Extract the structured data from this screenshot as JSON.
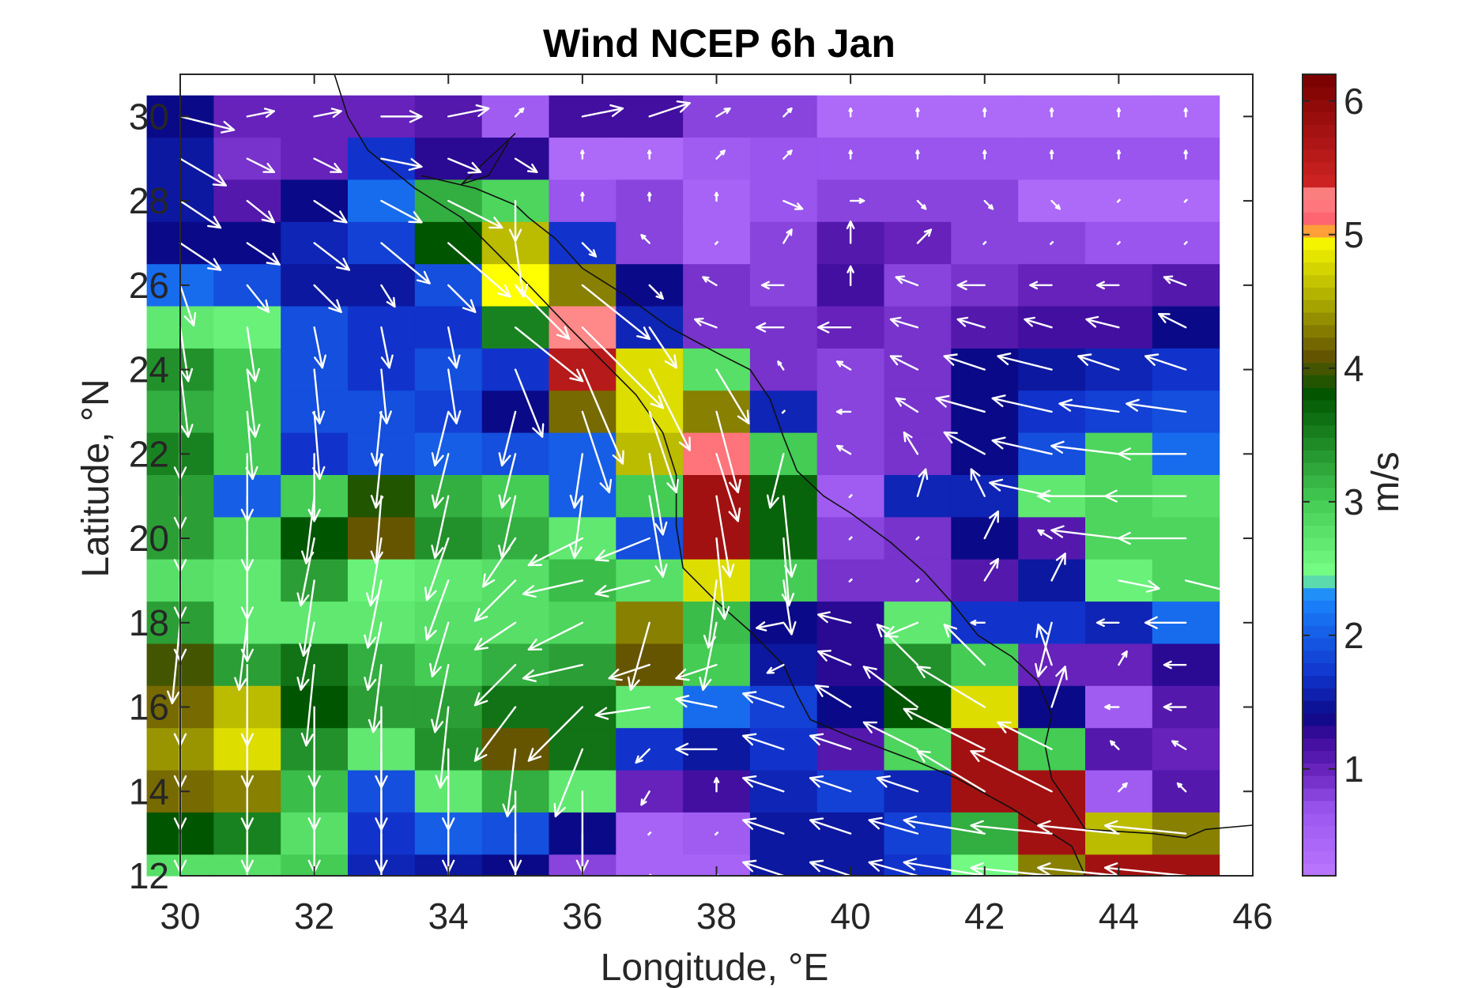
{
  "chart_data": {
    "type": "heatmap",
    "subtype": "wind speed grid with wind vectors",
    "title": "Wind NCEP 6h Jan",
    "xlabel": "Longitude, °E",
    "ylabel": "Latitude, °N",
    "colorbar_label": "m/s",
    "xlim": [
      30,
      46
    ],
    "ylim": [
      12,
      31
    ],
    "x_ticks": [
      "30",
      "32",
      "34",
      "36",
      "38",
      "40",
      "42",
      "44",
      "46"
    ],
    "y_ticks": [
      "12",
      "14",
      "16",
      "18",
      "20",
      "22",
      "24",
      "26",
      "28",
      "30"
    ],
    "colorbar_ticks": [
      "1",
      "2",
      "3",
      "4",
      "5",
      "6"
    ],
    "colorbar_range": [
      0.2,
      6.2
    ],
    "colormap": [
      [
        0.2,
        "#bb77ff"
      ],
      [
        0.7,
        "#9955ee"
      ],
      [
        1.0,
        "#6622bb"
      ],
      [
        1.25,
        "#3a0a99"
      ],
      [
        1.4,
        "#0a0a88"
      ],
      [
        1.7,
        "#1133cc"
      ],
      [
        2.3,
        "#1a88ff"
      ],
      [
        2.45,
        "#77ff88"
      ],
      [
        3.0,
        "#44cc55"
      ],
      [
        3.8,
        "#005500"
      ],
      [
        4.1,
        "#665500"
      ],
      [
        4.5,
        "#aaaa00"
      ],
      [
        5.0,
        "#ffff00"
      ],
      [
        5.05,
        "#ff5566"
      ],
      [
        5.3,
        "#ff8888"
      ],
      [
        5.4,
        "#cc2222"
      ],
      [
        6.2,
        "#770000"
      ]
    ],
    "x_centers": [
      30,
      31,
      32,
      33,
      34,
      35,
      36,
      37,
      38,
      39,
      40,
      41,
      42,
      43,
      44,
      45
    ],
    "y_centers": [
      30,
      29,
      28,
      27,
      26,
      25,
      24,
      23,
      22,
      21,
      20,
      19,
      18,
      17,
      16,
      15,
      14,
      13,
      12
    ],
    "speed": [
      [
        1.4,
        1.0,
        1.0,
        1.0,
        1.1,
        0.6,
        1.2,
        1.2,
        0.8,
        0.8,
        0.4,
        0.4,
        0.4,
        0.4,
        0.4,
        0.4
      ],
      [
        1.5,
        0.9,
        1.0,
        1.7,
        1.3,
        1.3,
        0.4,
        0.4,
        0.6,
        0.7,
        0.7,
        0.7,
        0.7,
        0.7,
        0.7,
        0.7
      ],
      [
        1.5,
        1.1,
        1.4,
        2.1,
        3.2,
        2.9,
        0.7,
        0.8,
        0.5,
        0.7,
        0.8,
        0.8,
        0.8,
        0.4,
        0.4,
        0.4
      ],
      [
        1.4,
        1.4,
        1.6,
        1.8,
        3.8,
        4.6,
        1.7,
        0.8,
        0.5,
        0.8,
        1.1,
        1.0,
        0.8,
        0.8,
        0.7,
        0.7
      ],
      [
        2.1,
        1.9,
        1.5,
        1.5,
        1.9,
        5.0,
        4.3,
        1.4,
        0.9,
        0.8,
        1.2,
        0.8,
        0.9,
        1.0,
        1.0,
        1.1
      ],
      [
        2.7,
        2.6,
        1.9,
        1.7,
        1.7,
        3.5,
        5.3,
        1.6,
        0.9,
        0.9,
        1.0,
        0.9,
        1.1,
        1.2,
        1.2,
        1.4
      ],
      [
        3.4,
        3.0,
        1.9,
        1.7,
        1.9,
        1.7,
        5.6,
        4.8,
        2.8,
        0.9,
        0.8,
        0.9,
        1.4,
        1.5,
        1.6,
        1.7
      ],
      [
        3.2,
        3.0,
        1.9,
        1.9,
        1.8,
        1.4,
        4.2,
        4.8,
        4.3,
        1.6,
        0.8,
        0.9,
        1.4,
        1.7,
        1.8,
        1.9
      ],
      [
        3.5,
        3.0,
        1.7,
        1.9,
        2.0,
        1.9,
        2.0,
        4.6,
        5.2,
        3.0,
        0.8,
        0.9,
        1.4,
        1.9,
        2.9,
        2.1
      ],
      [
        3.3,
        2.0,
        3.0,
        3.9,
        3.2,
        3.0,
        2.0,
        3.0,
        5.8,
        3.7,
        0.6,
        1.6,
        1.6,
        2.7,
        2.9,
        2.8
      ],
      [
        3.3,
        2.9,
        3.8,
        4.1,
        3.4,
        3.2,
        2.7,
        1.9,
        5.8,
        3.7,
        0.8,
        0.9,
        1.4,
        1.1,
        2.9,
        2.9
      ],
      [
        2.8,
        2.7,
        3.3,
        2.6,
        2.7,
        2.8,
        3.1,
        2.8,
        4.8,
        3.0,
        0.9,
        0.9,
        1.1,
        1.5,
        2.6,
        2.9
      ],
      [
        3.3,
        2.7,
        2.7,
        2.7,
        2.8,
        2.8,
        2.9,
        4.3,
        3.1,
        1.4,
        1.3,
        2.7,
        1.7,
        1.7,
        1.6,
        2.1
      ],
      [
        4.0,
        3.3,
        3.6,
        3.2,
        3.0,
        3.2,
        3.3,
        4.1,
        3.0,
        1.5,
        1.3,
        3.4,
        3.0,
        1.0,
        1.0,
        1.3
      ],
      [
        4.2,
        4.6,
        3.8,
        3.3,
        3.3,
        3.6,
        3.6,
        2.7,
        2.1,
        1.8,
        1.4,
        3.8,
        4.8,
        1.4,
        0.6,
        1.1
      ],
      [
        4.4,
        4.8,
        3.4,
        2.7,
        3.4,
        4.1,
        3.6,
        1.7,
        1.5,
        1.7,
        1.1,
        2.9,
        5.8,
        3.0,
        1.1,
        1.0
      ],
      [
        4.2,
        4.3,
        3.1,
        1.9,
        2.7,
        3.2,
        2.7,
        1.0,
        1.2,
        1.6,
        1.8,
        1.6,
        5.8,
        5.8,
        0.6,
        1.1
      ],
      [
        3.8,
        3.5,
        2.8,
        1.7,
        2.0,
        1.9,
        1.4,
        0.5,
        0.6,
        1.5,
        1.5,
        1.8,
        3.2,
        5.8,
        4.6,
        4.3
      ],
      [
        2.8,
        2.8,
        3.0,
        1.6,
        1.5,
        1.4,
        0.8,
        0.5,
        0.5,
        1.5,
        1.5,
        1.7,
        2.5,
        4.3,
        5.8,
        5.8
      ]
    ],
    "wind_u": [
      [
        2.0,
        1.0,
        1.0,
        1.5,
        1.5,
        0.3,
        1.5,
        1.5,
        0.5,
        0.3,
        0.0,
        0.0,
        0.0,
        0.0,
        0.0,
        0.0
      ],
      [
        1.7,
        1.0,
        1.0,
        1.5,
        1.2,
        0.8,
        0.0,
        0.0,
        0.3,
        0.3,
        0.0,
        0.0,
        0.0,
        0.0,
        0.0,
        0.0
      ],
      [
        1.5,
        1.0,
        1.2,
        1.5,
        2.0,
        0.0,
        0.0,
        0.0,
        0.0,
        0.7,
        0.5,
        0.3,
        0.3,
        0.3,
        0.0,
        0.0
      ],
      [
        1.5,
        1.2,
        1.3,
        1.8,
        2.3,
        0.3,
        0.5,
        -0.3,
        0.0,
        0.3,
        0.0,
        0.5,
        0.0,
        0.0,
        0.0,
        0.0
      ],
      [
        0.5,
        0.8,
        1.0,
        0.5,
        1.0,
        2.0,
        2.5,
        0.5,
        -0.5,
        -0.8,
        0.0,
        -0.8,
        -1.0,
        -0.8,
        -0.8,
        -0.8
      ],
      [
        0.3,
        0.3,
        0.3,
        0.3,
        0.3,
        2.5,
        3.0,
        1.0,
        -0.8,
        -1.0,
        -1.2,
        -1.0,
        -1.0,
        -1.0,
        -1.2,
        -1.0
      ],
      [
        0.3,
        0.3,
        0.2,
        0.2,
        0.3,
        1.0,
        1.5,
        1.5,
        1.2,
        -0.2,
        -0.5,
        -1.0,
        -1.5,
        -2.0,
        -1.5,
        -1.5
      ],
      [
        0.0,
        0.2,
        0.2,
        -0.2,
        -0.5,
        -0.5,
        1.0,
        1.0,
        0.8,
        0.0,
        -0.5,
        -0.8,
        -1.8,
        -2.2,
        -2.2,
        -2.2
      ],
      [
        0.0,
        0.0,
        0.0,
        -0.2,
        -0.5,
        -0.5,
        -0.3,
        0.5,
        0.8,
        -0.5,
        -0.5,
        -0.5,
        -1.5,
        -2.2,
        -2.5,
        -2.5
      ],
      [
        0.0,
        0.0,
        -0.3,
        -0.2,
        -0.5,
        -0.5,
        -0.3,
        0.5,
        0.5,
        0.3,
        0.0,
        0.3,
        -0.5,
        -2.3,
        -3.0,
        -3.0
      ],
      [
        0.0,
        0.0,
        -0.5,
        -0.4,
        -0.8,
        -1.2,
        -2.0,
        -2.0,
        0.3,
        0.2,
        0.0,
        0.0,
        0.5,
        -0.5,
        -2.5,
        -2.5
      ],
      [
        0.0,
        0.0,
        -0.4,
        -0.5,
        -0.8,
        -1.5,
        -2.2,
        -2.0,
        -0.3,
        0.3,
        0.0,
        0.0,
        0.5,
        0.5,
        1.5,
        2.0
      ],
      [
        -0.3,
        -0.3,
        -0.5,
        -0.5,
        -0.6,
        -1.5,
        -2.0,
        -0.7,
        -0.5,
        -1.0,
        -1.2,
        -1.2,
        -0.5,
        -0.5,
        -0.8,
        -1.5
      ],
      [
        0.0,
        0.0,
        -0.3,
        -0.3,
        -0.5,
        -1.5,
        -2.2,
        -1.5,
        -1.5,
        -0.6,
        -1.2,
        -1.5,
        -1.5,
        -0.5,
        0.3,
        -0.8
      ],
      [
        0.0,
        0.0,
        0.0,
        0.0,
        -0.3,
        -1.5,
        -2.0,
        -2.0,
        -1.5,
        -1.5,
        -1.3,
        -2.0,
        -2.5,
        0.5,
        -0.5,
        -0.8
      ],
      [
        0.0,
        0.0,
        0.0,
        0.0,
        0.0,
        -0.3,
        -1.0,
        -0.5,
        -1.5,
        -1.5,
        -1.5,
        -2.0,
        -3.0,
        -2.0,
        -0.3,
        -0.5
      ],
      [
        0.0,
        0.0,
        0.0,
        0.0,
        0.0,
        0.0,
        0.0,
        -0.3,
        0.0,
        -1.5,
        -1.5,
        -1.5,
        -2.5,
        -3.0,
        0.3,
        -0.3
      ],
      [
        0.0,
        0.0,
        0.0,
        0.0,
        0.0,
        0.0,
        0.0,
        0.0,
        0.0,
        -1.5,
        -1.5,
        -1.8,
        -3.0,
        -3.0,
        -3.0,
        -3.0
      ],
      [
        0.0,
        0.0,
        0.0,
        0.0,
        0.0,
        0.0,
        0.0,
        0.0,
        0.0,
        -1.5,
        -1.5,
        -1.8,
        -3.0,
        -3.0,
        -3.0,
        -3.0
      ]
    ],
    "wind_v": [
      [
        -0.5,
        0.2,
        0.2,
        0.0,
        0.3,
        0.3,
        0.3,
        0.5,
        0.3,
        0.3,
        0.3,
        0.3,
        0.3,
        0.3,
        0.3,
        0.3
      ],
      [
        -1.0,
        -0.5,
        -0.5,
        -0.3,
        -0.5,
        -0.5,
        0.3,
        0.3,
        0.3,
        0.3,
        0.3,
        0.3,
        0.3,
        0.3,
        0.3,
        0.3
      ],
      [
        -1.0,
        -0.8,
        -0.8,
        -0.8,
        -1.0,
        -1.5,
        0.3,
        0.3,
        0.3,
        -0.3,
        0.0,
        -0.3,
        -0.3,
        -0.3,
        0.0,
        0.0
      ],
      [
        -1.0,
        -0.8,
        -1.0,
        -1.5,
        -2.0,
        -2.0,
        -0.5,
        0.3,
        0.0,
        0.5,
        0.8,
        0.5,
        0.0,
        0.0,
        0.0,
        0.0
      ],
      [
        -1.5,
        -1.0,
        -1.0,
        -0.8,
        -1.0,
        -2.0,
        -2.0,
        -0.5,
        0.3,
        0.0,
        0.7,
        0.3,
        0.0,
        0.0,
        0.0,
        0.3
      ],
      [
        -2.0,
        -2.0,
        -1.5,
        -1.5,
        -1.5,
        -2.0,
        -3.0,
        -1.5,
        0.3,
        0.0,
        0.0,
        0.3,
        0.3,
        0.3,
        0.3,
        0.5
      ],
      [
        -2.5,
        -2.5,
        -2.0,
        -2.0,
        -2.0,
        -2.5,
        -3.5,
        -3.0,
        -2.0,
        0.3,
        0.3,
        0.5,
        0.5,
        0.5,
        0.5,
        0.5
      ],
      [
        -2.5,
        -2.5,
        -2.5,
        -2.0,
        -2.0,
        -2.0,
        -3.0,
        -3.0,
        -3.0,
        0.0,
        0.0,
        0.5,
        0.5,
        0.5,
        0.3,
        0.3
      ],
      [
        -2.8,
        -2.5,
        -2.5,
        -2.0,
        -2.0,
        -2.0,
        -2.0,
        -3.0,
        -2.5,
        -2.0,
        0.3,
        0.8,
        0.8,
        0.5,
        0.3,
        0.0
      ],
      [
        -2.8,
        -2.8,
        -2.5,
        -2.5,
        -2.3,
        -2.3,
        -2.3,
        -3.0,
        -3.0,
        -3.0,
        0.0,
        1.0,
        1.0,
        0.5,
        0.0,
        0.0
      ],
      [
        -3.0,
        -3.0,
        -2.5,
        -2.5,
        -2.3,
        -1.8,
        -1.0,
        -0.8,
        -3.0,
        -2.5,
        0.0,
        0.0,
        1.0,
        0.3,
        0.3,
        0.0
      ],
      [
        -3.0,
        -3.0,
        -2.8,
        -2.5,
        -2.2,
        -1.5,
        -0.5,
        -0.5,
        -2.5,
        -2.0,
        0.0,
        0.0,
        0.8,
        1.0,
        -0.3,
        -0.5
      ],
      [
        -3.0,
        -2.5,
        -2.5,
        -2.5,
        -2.0,
        -1.0,
        -1.0,
        -2.5,
        -2.5,
        -0.2,
        0.3,
        -0.5,
        0.0,
        -2.0,
        0.0,
        0.0
      ],
      [
        -3.0,
        -3.0,
        -3.0,
        -2.5,
        -2.5,
        -1.5,
        -0.5,
        -0.5,
        -0.5,
        -0.3,
        0.5,
        1.5,
        1.5,
        1.5,
        0.5,
        0.0
      ],
      [
        -3.0,
        -3.0,
        -3.0,
        -3.0,
        -3.0,
        -2.0,
        -2.0,
        -0.3,
        0.3,
        0.5,
        0.8,
        1.5,
        1.5,
        1.5,
        0.0,
        0.0
      ],
      [
        -3.0,
        -3.0,
        -3.0,
        -3.0,
        -3.0,
        -2.5,
        -2.5,
        -0.5,
        0.0,
        0.5,
        0.5,
        1.0,
        1.5,
        1.0,
        0.3,
        0.3
      ],
      [
        -3.0,
        -3.0,
        -3.0,
        -3.0,
        -3.0,
        -3.0,
        -3.0,
        -0.5,
        0.5,
        0.5,
        0.5,
        0.5,
        1.5,
        1.5,
        0.3,
        0.3
      ],
      [
        -3.0,
        -3.0,
        -3.0,
        -3.0,
        -3.0,
        -3.0,
        -3.0,
        0.0,
        0.0,
        0.5,
        0.5,
        0.5,
        0.5,
        0.3,
        0.3,
        0.3
      ],
      [
        -3.0,
        -3.0,
        -3.0,
        -3.0,
        -3.0,
        -3.0,
        -3.0,
        0.0,
        0.0,
        0.5,
        0.5,
        0.5,
        0.5,
        0.3,
        0.3,
        0.3
      ]
    ],
    "coastline_west": [
      [
        32.3,
        31.0
      ],
      [
        32.5,
        30.0
      ],
      [
        32.8,
        29.2
      ],
      [
        33.5,
        28.3
      ],
      [
        34.2,
        27.6
      ],
      [
        34.7,
        26.8
      ],
      [
        35.2,
        26.0
      ],
      [
        35.8,
        25.0
      ],
      [
        36.3,
        24.2
      ],
      [
        36.8,
        23.4
      ],
      [
        37.2,
        22.5
      ],
      [
        37.4,
        21.5
      ],
      [
        37.4,
        20.3
      ],
      [
        37.5,
        19.3
      ],
      [
        38.0,
        18.5
      ],
      [
        38.5,
        17.8
      ],
      [
        39.0,
        17.0
      ],
      [
        39.2,
        16.3
      ],
      [
        39.4,
        15.7
      ],
      [
        40.0,
        15.3
      ],
      [
        40.5,
        15.0
      ],
      [
        41.0,
        14.7
      ],
      [
        41.6,
        14.3
      ],
      [
        42.4,
        13.6
      ],
      [
        43.0,
        13.0
      ],
      [
        43.3,
        12.7
      ],
      [
        43.5,
        12.0
      ]
    ],
    "coastline_east": [
      [
        33.6,
        28.6
      ],
      [
        34.4,
        28.3
      ],
      [
        35.0,
        27.9
      ],
      [
        35.2,
        27.6
      ],
      [
        35.6,
        27.1
      ],
      [
        36.0,
        26.4
      ],
      [
        36.6,
        25.8
      ],
      [
        37.3,
        25.0
      ],
      [
        38.0,
        24.4
      ],
      [
        38.5,
        24.0
      ],
      [
        38.8,
        23.3
      ],
      [
        39.0,
        22.4
      ],
      [
        39.2,
        21.6
      ],
      [
        39.6,
        21.0
      ],
      [
        40.0,
        20.6
      ],
      [
        40.6,
        19.9
      ],
      [
        41.1,
        19.2
      ],
      [
        41.5,
        18.5
      ],
      [
        41.9,
        17.7
      ],
      [
        42.4,
        17.2
      ],
      [
        42.8,
        16.6
      ],
      [
        43.0,
        15.8
      ],
      [
        42.9,
        15.1
      ],
      [
        43.0,
        14.3
      ],
      [
        43.3,
        13.6
      ],
      [
        43.5,
        13.1
      ],
      [
        44.5,
        13.0
      ],
      [
        45.0,
        12.9
      ],
      [
        45.3,
        13.1
      ],
      [
        46.0,
        13.2
      ]
    ],
    "coastline_sinai": [
      [
        35.0,
        29.6
      ],
      [
        34.6,
        29.0
      ],
      [
        34.2,
        28.4
      ],
      [
        34.6,
        28.6
      ],
      [
        34.9,
        29.4
      ]
    ]
  }
}
